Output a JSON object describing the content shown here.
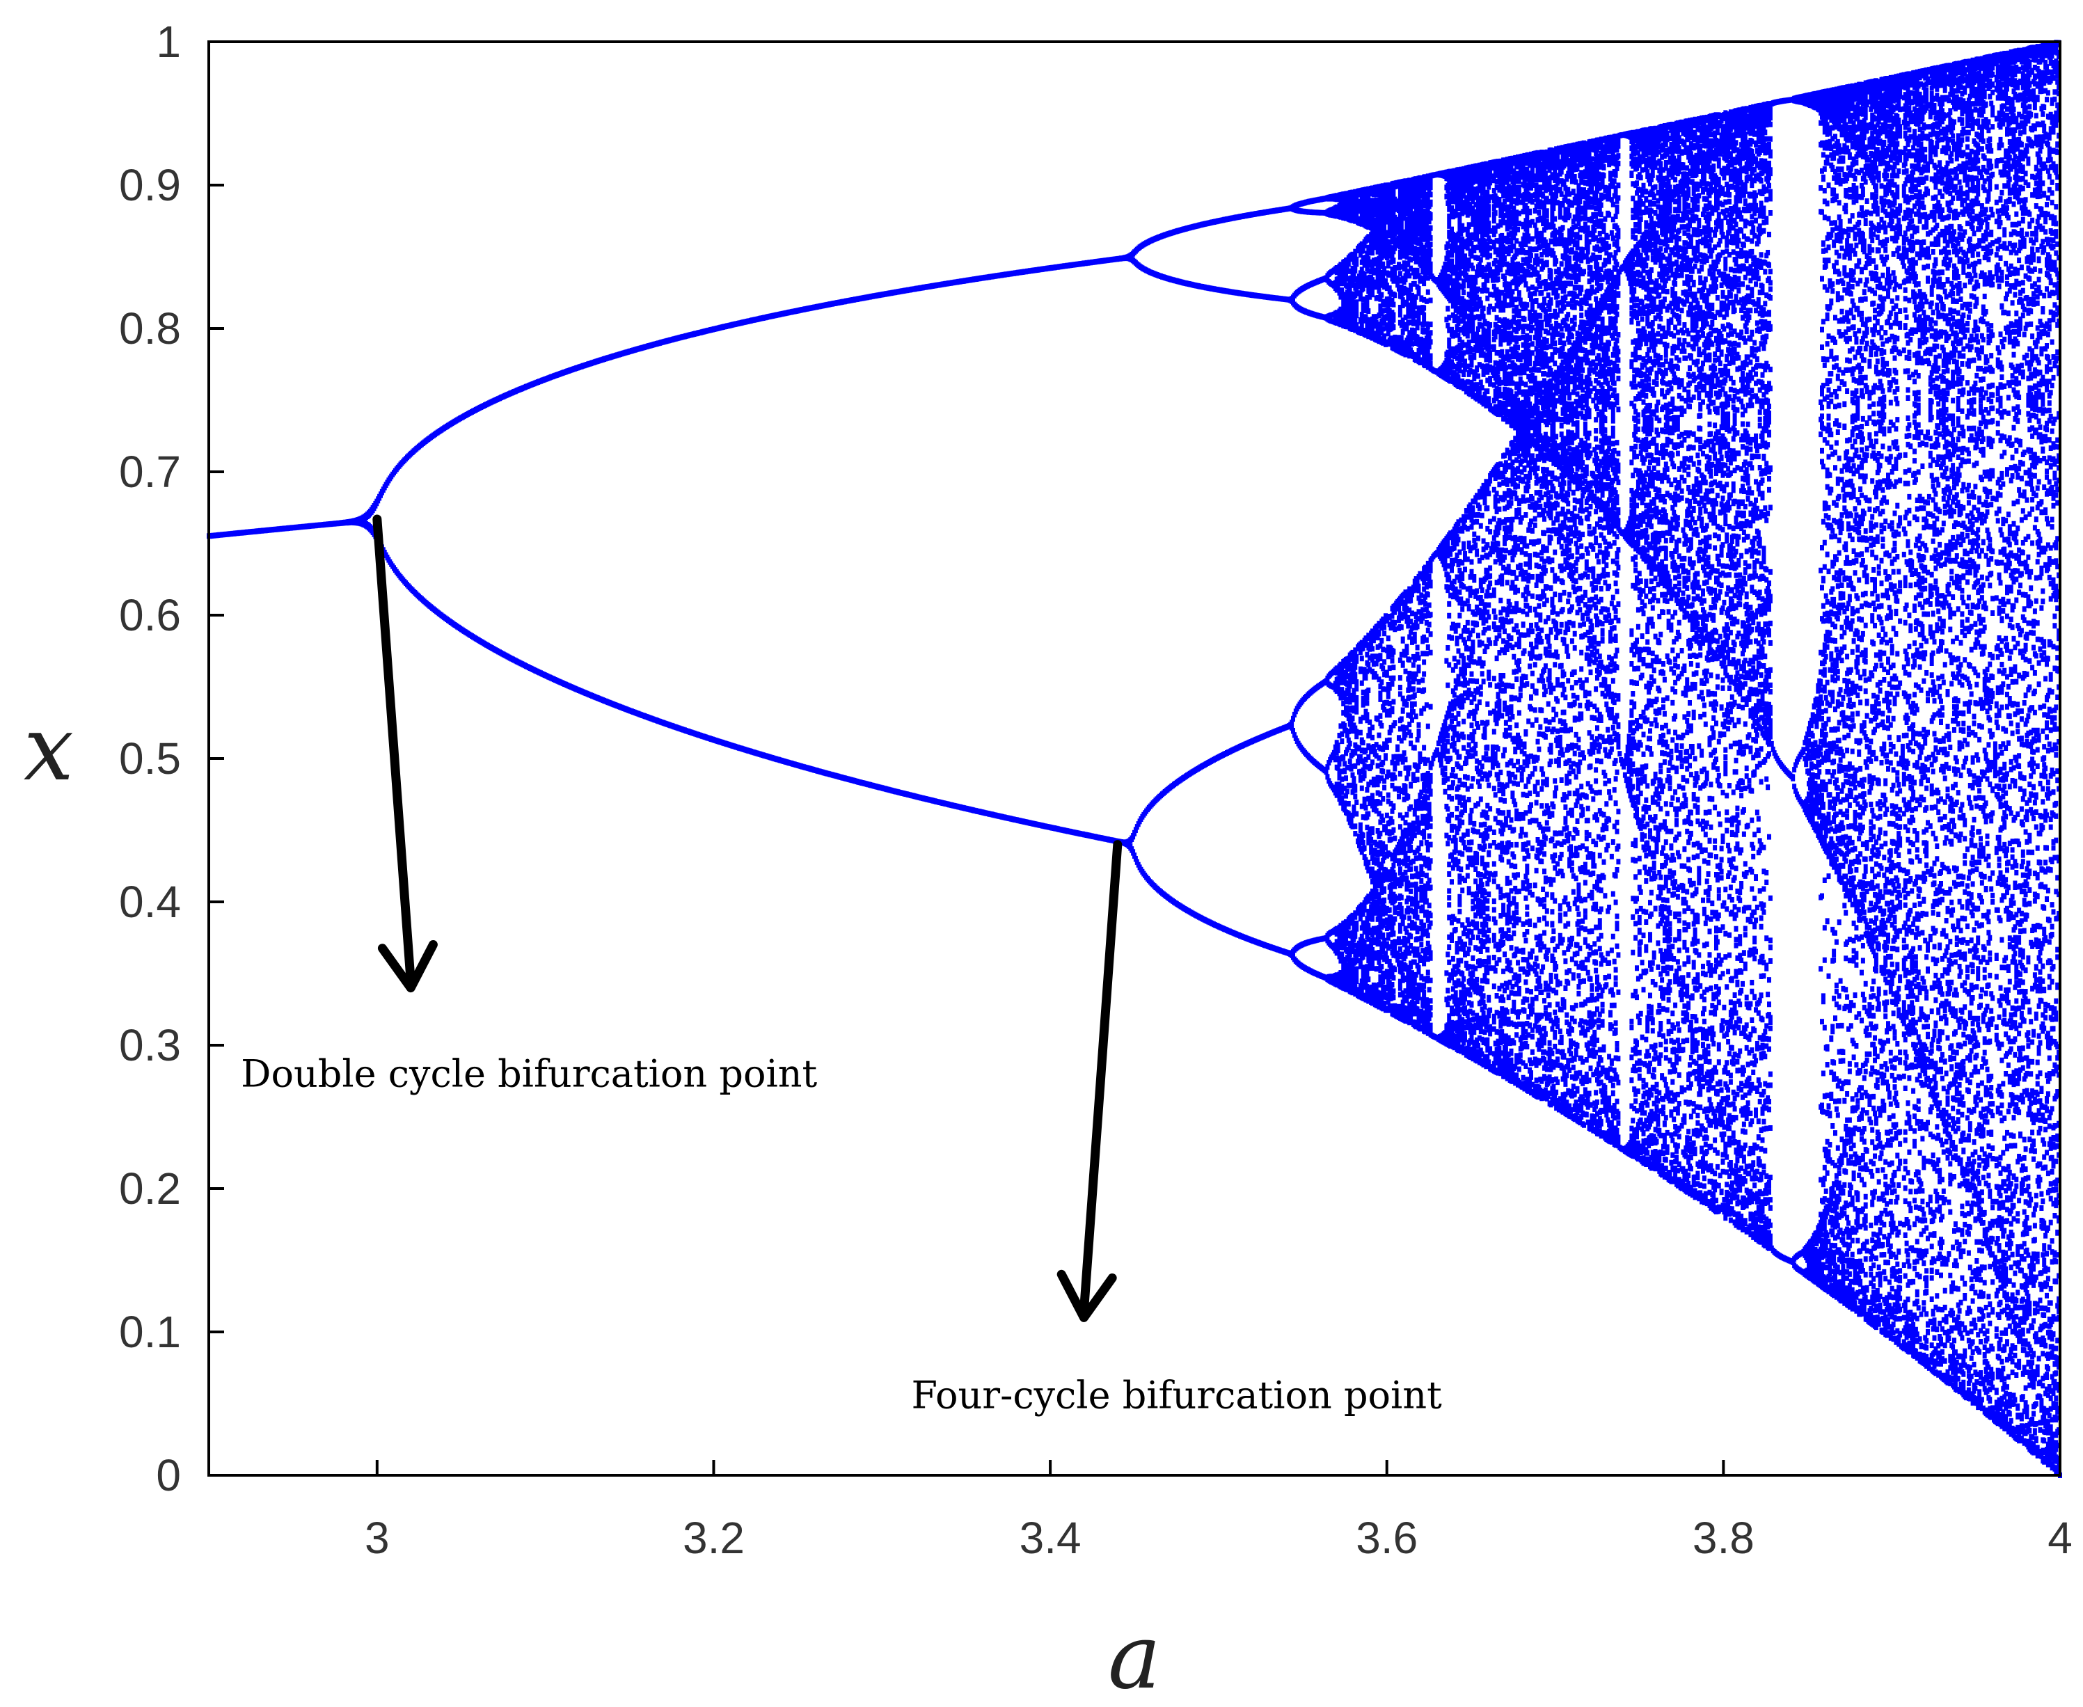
{
  "chart_data": {
    "type": "scatter",
    "title": "",
    "xlabel": "a",
    "ylabel": "x",
    "xlim": [
      2.9,
      4.0
    ],
    "ylim": [
      0,
      1
    ],
    "xticks": [
      "3",
      "3.2",
      "3.4",
      "3.6",
      "3.8",
      "4"
    ],
    "yticks": [
      "0",
      "0.1",
      "0.2",
      "0.3",
      "0.4",
      "0.5",
      "0.6",
      "0.7",
      "0.8",
      "0.9",
      "1"
    ],
    "grid": false,
    "legend": "none",
    "series": [
      {
        "equation": "x(n+1) = a·x(n)·(1 − x(n))",
        "a_min": 2.9,
        "a_max": 4.0,
        "a_steps": 1400,
        "transient_iterations": 300,
        "plotted_iterations": 70,
        "color": "#0000ff"
      }
    ],
    "annotations": [
      {
        "text": "Double cycle bifurcation point",
        "point": [
          3.0,
          0.667
        ],
        "arrow_tip": [
          3.02,
          0.34
        ]
      },
      {
        "text": "Four-cycle bifurcation point",
        "point": [
          3.44,
          0.44
        ],
        "arrow_tip": [
          3.42,
          0.11
        ]
      }
    ]
  }
}
